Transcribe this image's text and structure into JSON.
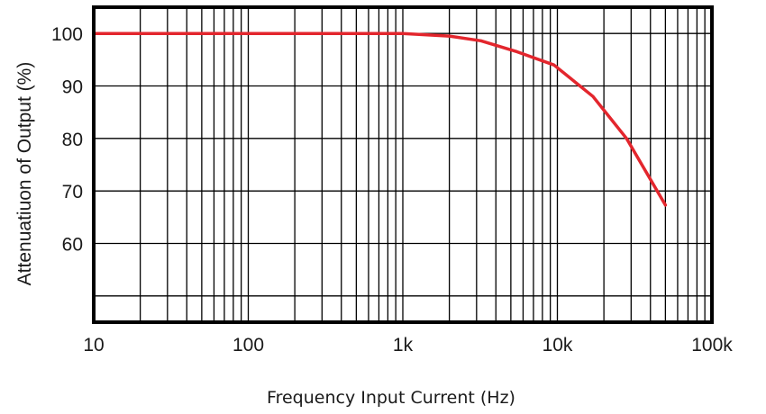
{
  "chart_data": {
    "type": "line",
    "xlabel": "Frequency Input Current (Hz)",
    "ylabel": "Attenuatiuon of Output (%)",
    "x_scale": "log",
    "xlim": [
      10,
      100000
    ],
    "ylim": [
      45,
      105
    ],
    "x_ticks": [
      10,
      100,
      1000,
      10000,
      100000
    ],
    "x_tick_labels": [
      "10",
      "100",
      "1k",
      "10k",
      "100k"
    ],
    "y_ticks": [
      60,
      70,
      80,
      90,
      100
    ],
    "y_tick_labels": [
      "60",
      "70",
      "80",
      "90",
      "100"
    ],
    "y_gridlines": [
      50,
      60,
      70,
      80,
      90,
      100
    ],
    "grid": true,
    "series": [
      {
        "color": "#e3262d",
        "x": [
          10,
          100,
          1000,
          2000,
          3200,
          5500,
          9500,
          17000,
          28000,
          50000
        ],
        "y": [
          100,
          100,
          100,
          99.5,
          98.6,
          96.5,
          94,
          88,
          80,
          67.3
        ]
      }
    ]
  }
}
